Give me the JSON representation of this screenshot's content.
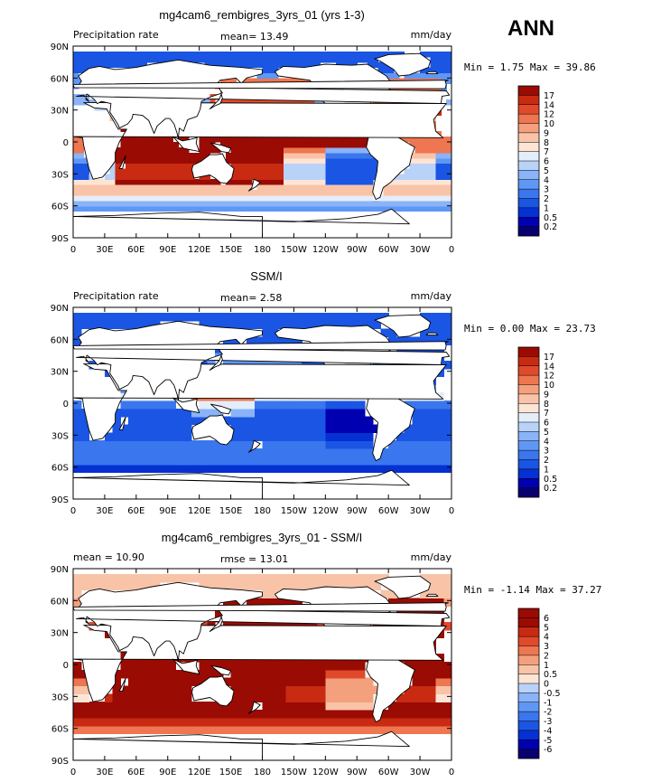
{
  "header": {
    "season": "ANN"
  },
  "scale_abs": {
    "levels": [
      "0.2",
      "0.5",
      "1",
      "2",
      "3",
      "4",
      "5",
      "6",
      "7",
      "8",
      "9",
      "10",
      "12",
      "14",
      "17"
    ],
    "colors": [
      "#08006e",
      "#0000b0",
      "#0530d2",
      "#1a55e3",
      "#3a76ee",
      "#5f97f5",
      "#8ab3f8",
      "#b9d2f8",
      "#e4edfa",
      "#fde5d6",
      "#f9c3a8",
      "#f5a07d",
      "#ee7650",
      "#e04a2a",
      "#c82a12",
      "#9a0b03"
    ]
  },
  "scale_diff": {
    "levels": [
      "-6",
      "-5",
      "-4",
      "-3",
      "-2",
      "-1",
      "-0.5",
      "0",
      "0.5",
      "1",
      "2",
      "3",
      "4",
      "5",
      "6"
    ],
    "colors": [
      "#08006e",
      "#0000b0",
      "#0530d2",
      "#1a55e3",
      "#3a76ee",
      "#5f97f5",
      "#8ab3f8",
      "#b9d2f8",
      "#fde5d6",
      "#f9c3a8",
      "#f5a07d",
      "#ee7650",
      "#e04a2a",
      "#c82a12",
      "#9a0b03",
      "#9a0b03"
    ]
  },
  "axes": {
    "lon_ticks": [
      "0",
      "30E",
      "60E",
      "90E",
      "120E",
      "150E",
      "180",
      "150W",
      "120W",
      "90W",
      "60W",
      "30W",
      "0"
    ],
    "lat_ticks": [
      "90N",
      "60N",
      "30N",
      "0",
      "30S",
      "60S",
      "90S"
    ]
  },
  "panels": [
    {
      "title": "mg4cam6_rembigres_3yrs_01 (yrs 1-3)",
      "left_label": "Precipitation rate",
      "center_label": "mean=  13.49",
      "right_label": "mm/day",
      "minmax": "Min =    1.75 Max =   39.86",
      "scale": "abs",
      "field": "model"
    },
    {
      "title": "SSM/I",
      "left_label": "Precipitation rate",
      "center_label": "mean=   2.58",
      "right_label": "mm/day",
      "minmax": "Min =    0.00 Max =   23.73",
      "scale": "abs",
      "field": "obs"
    },
    {
      "title": "mg4cam6_rembigres_3yrs_01 - SSM/I",
      "left_label": "mean =  10.90",
      "center_label": "rmse =   13.01",
      "right_label": "mm/day",
      "minmax": "Min =   -1.14 Max =   37.27",
      "scale": "diff",
      "field": "diff"
    }
  ],
  "chart_data": [
    {
      "type": "heatmap",
      "title": "mg4cam6_rembigres_3yrs_01 (yrs 1-3)",
      "variable": "Precipitation rate",
      "units": "mm/day",
      "mean": 13.49,
      "min": 1.75,
      "max": 39.86,
      "xlim": [
        "0",
        "0"
      ],
      "ylim": [
        "90S",
        "90N"
      ]
    },
    {
      "type": "heatmap",
      "title": "SSM/I",
      "variable": "Precipitation rate",
      "units": "mm/day",
      "mean": 2.58,
      "min": 0.0,
      "max": 23.73,
      "xlim": [
        "0",
        "0"
      ],
      "ylim": [
        "90S",
        "90N"
      ]
    },
    {
      "type": "heatmap",
      "title": "mg4cam6_rembigres_3yrs_01 - SSM/I",
      "units": "mm/day",
      "mean": 10.9,
      "rmse": 13.01,
      "min": -1.14,
      "max": 37.27,
      "xlim": [
        "0",
        "0"
      ],
      "ylim": [
        "90S",
        "90N"
      ]
    }
  ]
}
